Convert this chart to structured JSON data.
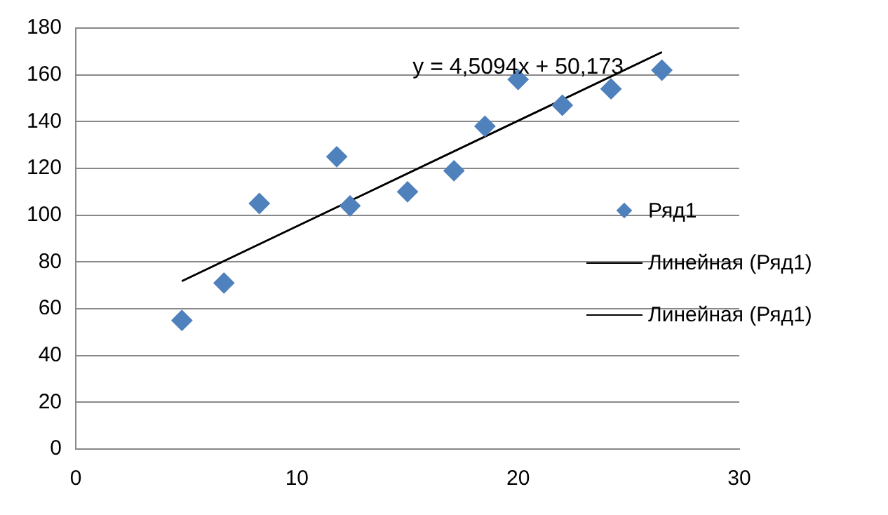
{
  "chart_data": {
    "type": "scatter",
    "xlim": [
      0,
      30
    ],
    "xticks": [
      0,
      10,
      20,
      30
    ],
    "ylim": [
      0,
      180
    ],
    "yticks": [
      0,
      20,
      40,
      60,
      80,
      100,
      120,
      140,
      160,
      180
    ],
    "grid": "y",
    "legend": "right",
    "marker": "diamond",
    "series": [
      {
        "name": "Ряд1",
        "type": "scatter",
        "color": "#4f81bd",
        "x": [
          4.8,
          6.7,
          8.3,
          11.8,
          12.4,
          15,
          17.1,
          18.5,
          20,
          22,
          24.2,
          26.5
        ],
        "values": [
          55,
          71,
          105,
          125,
          104,
          110,
          119,
          138,
          158,
          147,
          154,
          162
        ]
      },
      {
        "name": "Линейная (Ряд1)",
        "type": "line",
        "color": "#000000",
        "marker": "none",
        "x": [
          4.8,
          26.5
        ],
        "values": [
          71.8,
          169.7
        ]
      },
      {
        "name": "Линейная (Ряд1)",
        "type": "line",
        "color": "#000000",
        "marker": "none",
        "x": [
          4.8,
          26.5
        ],
        "values": [
          71.8,
          169.7
        ]
      }
    ],
    "annotations": [
      {
        "text": "y = 4,5094x + 50,173",
        "x": 20,
        "y": 163
      }
    ]
  }
}
